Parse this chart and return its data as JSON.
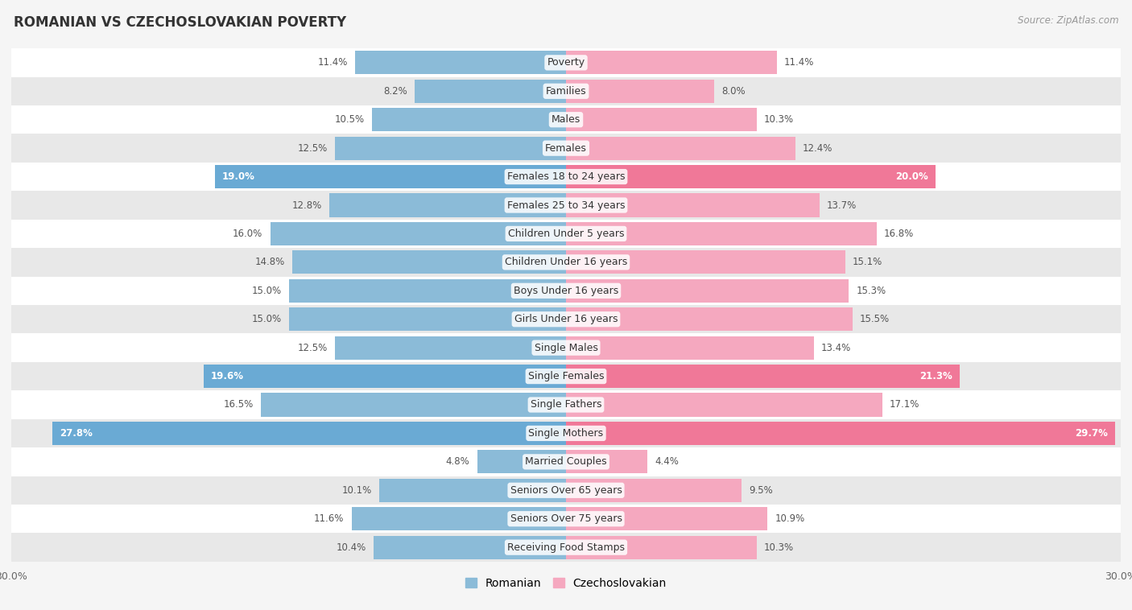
{
  "title": "ROMANIAN VS CZECHOSLOVAKIAN POVERTY",
  "source": "Source: ZipAtlas.com",
  "categories": [
    "Poverty",
    "Families",
    "Males",
    "Females",
    "Females 18 to 24 years",
    "Females 25 to 34 years",
    "Children Under 5 years",
    "Children Under 16 years",
    "Boys Under 16 years",
    "Girls Under 16 years",
    "Single Males",
    "Single Females",
    "Single Fathers",
    "Single Mothers",
    "Married Couples",
    "Seniors Over 65 years",
    "Seniors Over 75 years",
    "Receiving Food Stamps"
  ],
  "romanian": [
    11.4,
    8.2,
    10.5,
    12.5,
    19.0,
    12.8,
    16.0,
    14.8,
    15.0,
    15.0,
    12.5,
    19.6,
    16.5,
    27.8,
    4.8,
    10.1,
    11.6,
    10.4
  ],
  "czechoslovakian": [
    11.4,
    8.0,
    10.3,
    12.4,
    20.0,
    13.7,
    16.8,
    15.1,
    15.3,
    15.5,
    13.4,
    21.3,
    17.1,
    29.7,
    4.4,
    9.5,
    10.9,
    10.3
  ],
  "romanian_color": "#8bbbd8",
  "czechoslovakian_color": "#f5a8bf",
  "highlight_romanian_color": "#6aaad4",
  "highlight_czechoslovakian_color": "#f07898",
  "highlight_rows": [
    4,
    11,
    13
  ],
  "xlim": 30.0,
  "bar_height": 0.82,
  "bg_color": "#f5f5f5",
  "row_colors": [
    "#ffffff",
    "#e8e8e8"
  ],
  "label_fontsize": 9.0,
  "title_fontsize": 12,
  "value_fontsize": 8.5,
  "source_fontsize": 8.5
}
